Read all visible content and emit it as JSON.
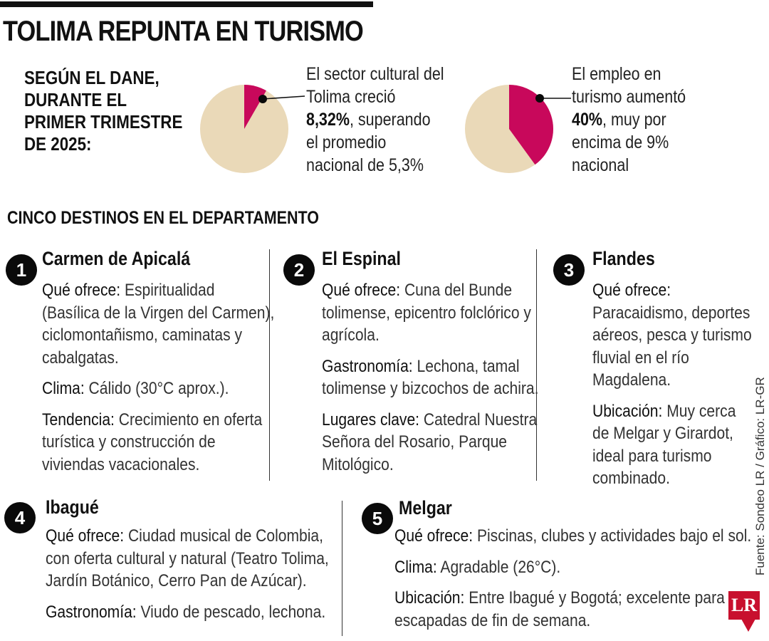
{
  "title": "TOLIMA REPUNTA EN TURISMO",
  "intro": [
    "SEGÚN EL DANE,",
    "DURANTE EL",
    "PRIMER TRIMESTRE",
    "DE 2025:"
  ],
  "chart_data": [
    {
      "type": "pie",
      "title": "",
      "slices": [
        {
          "label": "8,32%",
          "value": 8.32,
          "color": "#c8085b"
        },
        {
          "label": "",
          "value": 91.68,
          "color": "#ead9b8"
        }
      ],
      "annotation": {
        "line1": "El sector cultural del",
        "line2": "Tolima creció",
        "bold": "8,32%",
        "after_bold": ", superando",
        "line4": "el promedio",
        "line5": "nacional de 5,3%"
      }
    },
    {
      "type": "pie",
      "title": "",
      "slices": [
        {
          "label": "40%",
          "value": 40,
          "color": "#c8085b"
        },
        {
          "label": "",
          "value": 60,
          "color": "#ead9b8"
        }
      ],
      "annotation": {
        "line1": "El empleo en",
        "line2": "turismo aumentó",
        "bold": "40%",
        "after_bold": ", muy por",
        "line4": "encima de 9%",
        "line5": "nacional"
      }
    }
  ],
  "subtitle": "CINCO DESTINOS EN EL DEPARTAMENTO",
  "destinations": [
    {
      "number": "1",
      "name": "Carmen de Apicalá",
      "paras": [
        {
          "key": "Qué ofrece:",
          "lines": [
            " Espiritualidad",
            "(Basílica de la Virgen del Carmen),",
            "ciclomontañismo, caminatas y",
            "cabalgatas."
          ]
        },
        {
          "key": "Clima:",
          "lines": [
            " Cálido (30°C aprox.)."
          ]
        },
        {
          "key": "Tendencia:",
          "lines": [
            " Crecimiento en oferta",
            "turística y construcción de",
            "viviendas vacacionales."
          ]
        }
      ]
    },
    {
      "number": "2",
      "name": "El Espinal",
      "paras": [
        {
          "key": "Qué ofrece:",
          "lines": [
            " Cuna del Bunde",
            "tolimense, epicentro folclórico y",
            "agrícola."
          ]
        },
        {
          "key": "Gastronomía:",
          "lines": [
            " Lechona, tamal",
            "tolimense y bizcochos de achira."
          ]
        },
        {
          "key": "Lugares clave:",
          "lines": [
            " Catedral Nuestra",
            "Señora del Rosario, Parque",
            "Mitológico."
          ]
        }
      ]
    },
    {
      "number": "3",
      "name": "Flandes",
      "paras": [
        {
          "key": "Qué ofrece:",
          "lines": [
            "",
            "Paracaidismo, deportes",
            "aéreos, pesca y turismo",
            "fluvial en el río",
            "Magdalena."
          ]
        },
        {
          "key": "Ubicación:",
          "lines": [
            " Muy cerca",
            "de Melgar y Girardot,",
            "ideal para turismo",
            "combinado."
          ]
        }
      ]
    },
    {
      "number": "4",
      "name": "Ibagué",
      "paras": [
        {
          "key": "Qué ofrece:",
          "lines": [
            " Ciudad musical de Colombia,",
            "con oferta cultural y natural (Teatro Tolima,",
            "Jardín Botánico, Cerro Pan de Azúcar)."
          ]
        },
        {
          "key": "Gastronomía:",
          "lines": [
            " Viudo de pescado, lechona."
          ]
        }
      ]
    },
    {
      "number": "5",
      "name": "Melgar",
      "paras": [
        {
          "key": "Qué ofrece:",
          "lines": [
            " Piscinas, clubes y actividades bajo el sol."
          ]
        },
        {
          "key": "Clima:",
          "lines": [
            " Agradable (26°C)."
          ]
        },
        {
          "key": "Ubicación:",
          "lines": [
            " Entre Ibagué y Bogotá; excelente para",
            "escapadas de fin de semana."
          ]
        }
      ]
    }
  ],
  "source": "Fuente: Sondeo LR / Gráfico: LR-GR",
  "logo": "LR",
  "colors": {
    "accent": "#c8085b",
    "pie_base": "#ead9b8"
  }
}
